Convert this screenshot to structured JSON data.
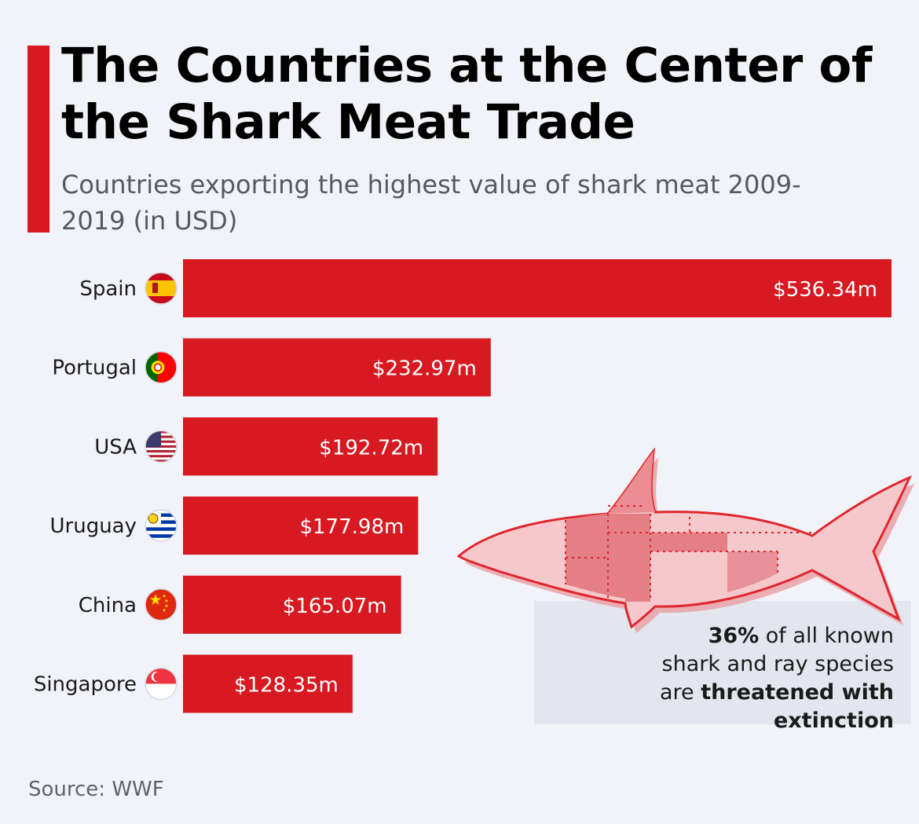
{
  "header": {
    "title": "The Countries at the Center of the Shark Meat Trade",
    "subtitle": "Countries exporting the highest value of shark meat 2009-2019 (in USD)"
  },
  "colors": {
    "accent": "#d71921",
    "bar": "#d71921",
    "background": "#f1f3f8",
    "callout_bg": "#e3e6ee"
  },
  "chart_data": {
    "type": "bar",
    "orientation": "horizontal",
    "categories": [
      "Spain",
      "Portugal",
      "USA",
      "Uruguay",
      "China",
      "Singapore"
    ],
    "values": [
      536.34,
      232.97,
      192.72,
      177.98,
      165.07,
      128.35
    ],
    "value_labels": [
      "$536.34m",
      "$232.97m",
      "$192.72m",
      "$177.98m",
      "$165.07m",
      "$128.35m"
    ],
    "flag_icons": [
      "flag-spain-icon",
      "flag-portugal-icon",
      "flag-usa-icon",
      "flag-uruguay-icon",
      "flag-china-icon",
      "flag-singapore-icon"
    ],
    "unit": "USD millions",
    "xlim": [
      0,
      536.34
    ],
    "grid": false,
    "legend": "none"
  },
  "callout": {
    "highlight": "36%",
    "line1_rest": " of all known",
    "line2": "shark and ray species",
    "line3_prefix": "are ",
    "line3_bold": "threatened with extinction",
    "illustration": "shark-icon"
  },
  "footer": {
    "source": "Source: WWF"
  }
}
